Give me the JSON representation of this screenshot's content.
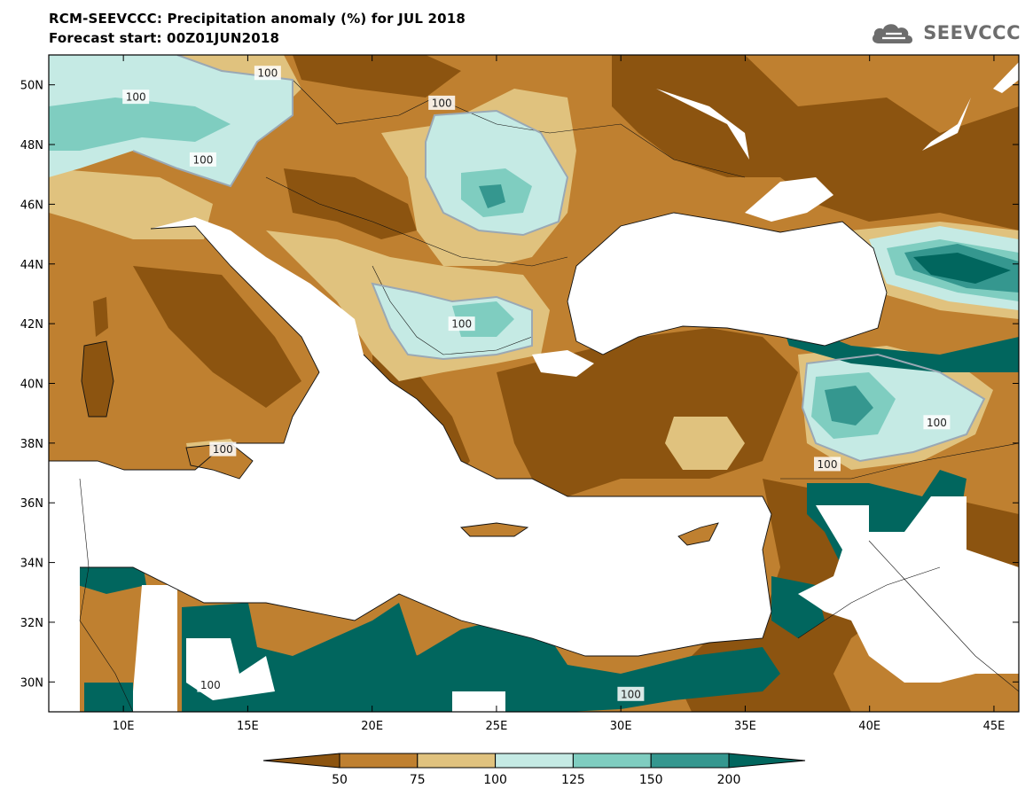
{
  "header": {
    "title": "RCM-SEEVCCC: Precipitation anomaly (%) for JUL 2018",
    "subtitle": "Forecast start: 00Z01JUN2018"
  },
  "logo": {
    "text": "SEEVCCC",
    "icon": "cloud-icon",
    "color": "#6d6d6d"
  },
  "map": {
    "lon_range": [
      7,
      46
    ],
    "lat_range": [
      29,
      51
    ],
    "lon_ticks": [
      "10E",
      "15E",
      "20E",
      "25E",
      "30E",
      "35E",
      "40E",
      "45E"
    ],
    "lat_ticks": [
      "50N",
      "48N",
      "46N",
      "44N",
      "42N",
      "40N",
      "38N",
      "36N",
      "34N",
      "32N",
      "30N"
    ],
    "contour_labels": [
      "100",
      "100",
      "100",
      "100",
      "100",
      "100",
      "100",
      "100",
      "100",
      "100"
    ]
  },
  "colorbar": {
    "labels": [
      "50",
      "75",
      "100",
      "125",
      "150",
      "200"
    ],
    "colors": {
      "below_50": "#8c5410",
      "50_75": "#bf8030",
      "75_100": "#e0c27e",
      "100_125": "#c5eae4",
      "125_150": "#7fcdc0",
      "150_200": "#35978f",
      "above_200": "#01665e"
    }
  }
}
